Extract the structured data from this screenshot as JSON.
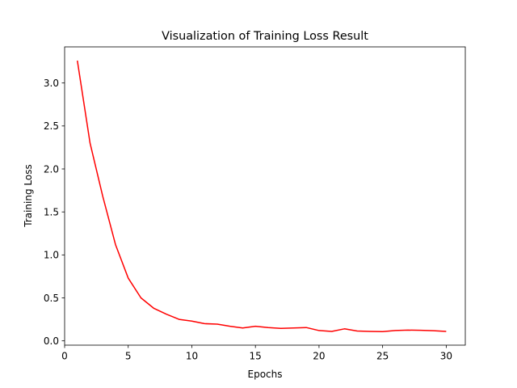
{
  "chart_data": {
    "type": "line",
    "title": "Visualization of Training Loss Result",
    "xlabel": "Epochs",
    "ylabel": "Training Loss",
    "xlim": [
      0,
      31.5
    ],
    "ylim": [
      -0.05,
      3.42
    ],
    "xticks": [
      0,
      5,
      10,
      15,
      20,
      25,
      30
    ],
    "yticks": [
      0.0,
      0.5,
      1.0,
      1.5,
      2.0,
      2.5,
      3.0
    ],
    "grid": false,
    "series": [
      {
        "color": "#ff0000",
        "x": [
          1,
          2,
          3,
          4,
          5,
          6,
          7,
          8,
          9,
          10,
          11,
          12,
          13,
          14,
          15,
          16,
          17,
          18,
          19,
          20,
          21,
          22,
          23,
          24,
          25,
          26,
          27,
          28,
          29,
          30
        ],
        "y": [
          3.26,
          2.3,
          1.68,
          1.12,
          0.73,
          0.5,
          0.38,
          0.31,
          0.25,
          0.23,
          0.2,
          0.195,
          0.17,
          0.15,
          0.17,
          0.155,
          0.145,
          0.15,
          0.155,
          0.12,
          0.11,
          0.14,
          0.115,
          0.11,
          0.108,
          0.12,
          0.125,
          0.123,
          0.118,
          0.11
        ]
      }
    ]
  }
}
